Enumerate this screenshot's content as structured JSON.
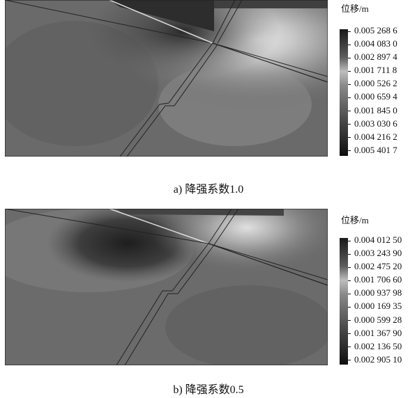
{
  "panels": [
    {
      "legend_title": "位移/m",
      "ticks": [
        "0.005 268 6",
        "0.004 083 0",
        "0.002 897 4",
        "0.001 711 8",
        "0.000 526 2",
        "0.000 659 4",
        "0.001 845 0",
        "0.003 030 6",
        "0.004 216 2",
        "0.005 401 7"
      ],
      "caption": "a) 降强系数1.0"
    },
    {
      "legend_title": "位移/m",
      "ticks": [
        "0.004 012 50",
        "0.003 243 90",
        "0.002 475 20",
        "0.001 706 60",
        "0.000 937 98",
        "0.000 169 35",
        "0.000 599 28",
        "0.001 367 90",
        "0.002 136 50",
        "0.002 905 10"
      ],
      "caption": "b) 降强系数0.5"
    }
  ],
  "colors": {
    "colorbar_gradient": [
      "#1a1a1a",
      "#3a3a3a",
      "#5e5e5e",
      "#bdbdbd",
      "#8a8a8a",
      "#6e6e6e",
      "#555555",
      "#3c3c3c",
      "#262626",
      "#0d0d0d"
    ]
  }
}
